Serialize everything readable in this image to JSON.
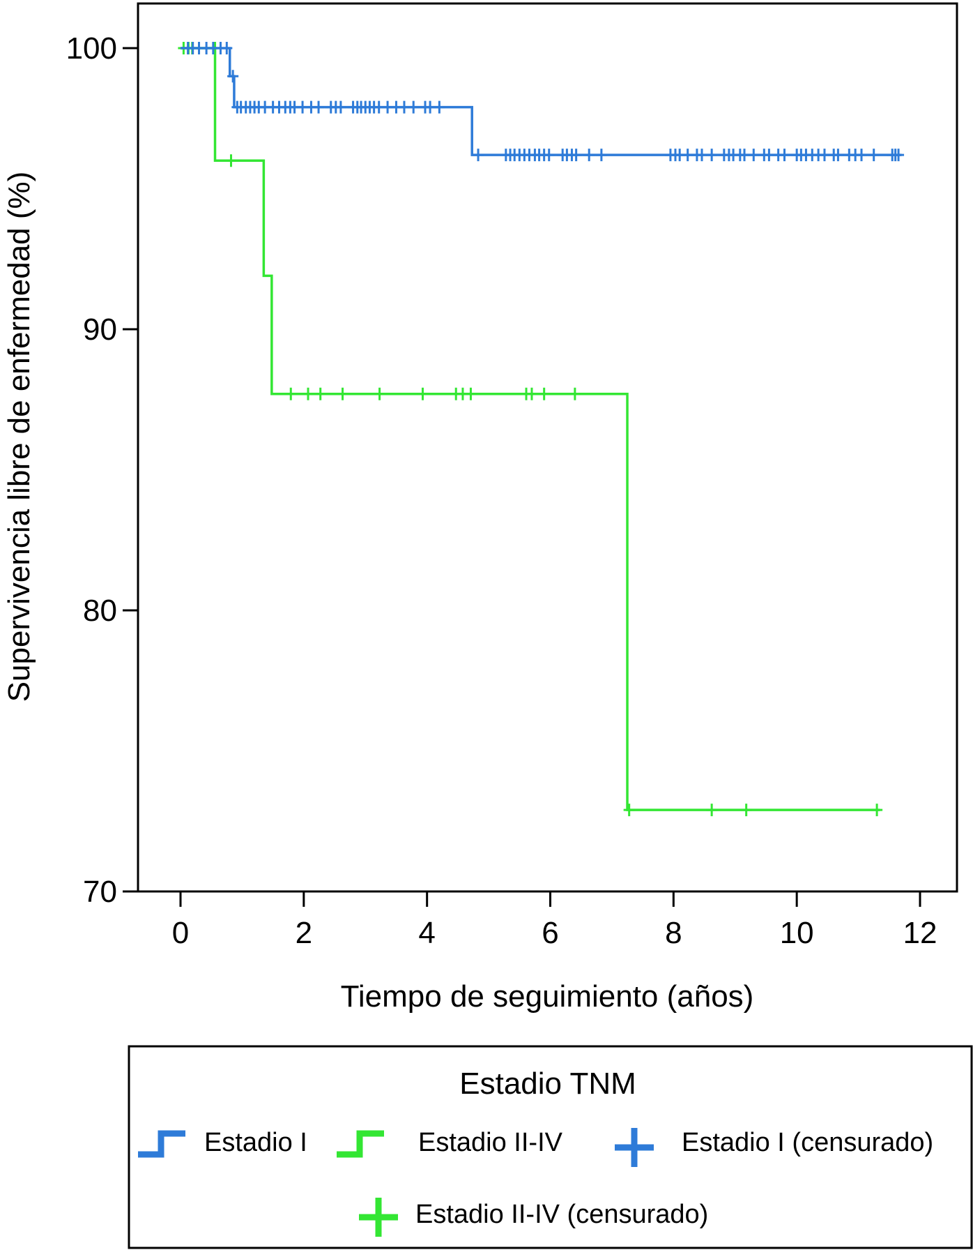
{
  "chart_data": {
    "type": "line",
    "subtype": "kaplan-meier",
    "title": "",
    "xlabel": "Tiempo de seguimiento (años)",
    "ylabel": "Supervivencia libre de enfermedad (%)",
    "xlim": [
      -0.7,
      12.6
    ],
    "ylim": [
      70,
      101.6
    ],
    "x_ticks": [
      0,
      2,
      4,
      6,
      8,
      10,
      12
    ],
    "x_tick_labels": [
      "0",
      "2",
      "4",
      "6",
      "8",
      "10",
      "12"
    ],
    "y_ticks": [
      70,
      80,
      90,
      100
    ],
    "y_tick_labels": [
      "70",
      "80",
      "90",
      "100"
    ],
    "grid": false,
    "series": [
      {
        "name": "Estadio I",
        "color": "#2E7BD8",
        "steps": [
          [
            0.0,
            100
          ],
          [
            0.8,
            99.0
          ],
          [
            0.87,
            97.9
          ],
          [
            4.73,
            96.2
          ],
          [
            11.7,
            96.2
          ]
        ],
        "censored": [
          [
            0.12,
            100
          ],
          [
            0.2,
            100
          ],
          [
            0.3,
            100
          ],
          [
            0.42,
            100
          ],
          [
            0.53,
            100
          ],
          [
            0.65,
            100
          ],
          [
            0.75,
            100
          ],
          [
            0.85,
            99.0
          ],
          [
            0.92,
            97.9
          ],
          [
            0.98,
            97.9
          ],
          [
            1.06,
            97.9
          ],
          [
            1.13,
            97.9
          ],
          [
            1.2,
            97.9
          ],
          [
            1.27,
            97.9
          ],
          [
            1.37,
            97.9
          ],
          [
            1.5,
            97.9
          ],
          [
            1.6,
            97.9
          ],
          [
            1.7,
            97.9
          ],
          [
            1.78,
            97.9
          ],
          [
            1.85,
            97.9
          ],
          [
            1.98,
            97.9
          ],
          [
            2.12,
            97.9
          ],
          [
            2.24,
            97.9
          ],
          [
            2.44,
            97.9
          ],
          [
            2.52,
            97.9
          ],
          [
            2.6,
            97.9
          ],
          [
            2.8,
            97.9
          ],
          [
            2.87,
            97.9
          ],
          [
            2.93,
            97.9
          ],
          [
            3.0,
            97.9
          ],
          [
            3.07,
            97.9
          ],
          [
            3.14,
            97.9
          ],
          [
            3.22,
            97.9
          ],
          [
            3.36,
            97.9
          ],
          [
            3.5,
            97.9
          ],
          [
            3.63,
            97.9
          ],
          [
            3.78,
            97.9
          ],
          [
            3.97,
            97.9
          ],
          [
            4.05,
            97.9
          ],
          [
            4.2,
            97.9
          ],
          [
            4.83,
            96.2
          ],
          [
            5.28,
            96.2
          ],
          [
            5.35,
            96.2
          ],
          [
            5.42,
            96.2
          ],
          [
            5.5,
            96.2
          ],
          [
            5.58,
            96.2
          ],
          [
            5.66,
            96.2
          ],
          [
            5.75,
            96.2
          ],
          [
            5.82,
            96.2
          ],
          [
            5.9,
            96.2
          ],
          [
            5.98,
            96.2
          ],
          [
            6.2,
            96.2
          ],
          [
            6.27,
            96.2
          ],
          [
            6.35,
            96.2
          ],
          [
            6.42,
            96.2
          ],
          [
            6.63,
            96.2
          ],
          [
            6.83,
            96.2
          ],
          [
            7.95,
            96.2
          ],
          [
            8.03,
            96.2
          ],
          [
            8.1,
            96.2
          ],
          [
            8.23,
            96.2
          ],
          [
            8.38,
            96.2
          ],
          [
            8.46,
            96.2
          ],
          [
            8.62,
            96.2
          ],
          [
            8.82,
            96.2
          ],
          [
            8.9,
            96.2
          ],
          [
            8.97,
            96.2
          ],
          [
            9.08,
            96.2
          ],
          [
            9.15,
            96.2
          ],
          [
            9.3,
            96.2
          ],
          [
            9.47,
            96.2
          ],
          [
            9.55,
            96.2
          ],
          [
            9.7,
            96.2
          ],
          [
            9.8,
            96.2
          ],
          [
            10.0,
            96.2
          ],
          [
            10.07,
            96.2
          ],
          [
            10.15,
            96.2
          ],
          [
            10.25,
            96.2
          ],
          [
            10.35,
            96.2
          ],
          [
            10.45,
            96.2
          ],
          [
            10.6,
            96.2
          ],
          [
            10.67,
            96.2
          ],
          [
            10.85,
            96.2
          ],
          [
            10.95,
            96.2
          ],
          [
            11.05,
            96.2
          ],
          [
            11.25,
            96.2
          ],
          [
            11.55,
            96.2
          ],
          [
            11.6,
            96.2
          ],
          [
            11.65,
            96.2
          ]
        ]
      },
      {
        "name": "Estadio II-IV",
        "color": "#33E633",
        "steps": [
          [
            0.0,
            100
          ],
          [
            0.56,
            96.0
          ],
          [
            1.35,
            91.9
          ],
          [
            1.48,
            87.7
          ],
          [
            7.25,
            72.9
          ],
          [
            11.35,
            72.9
          ]
        ],
        "censored": [
          [
            0.05,
            100
          ],
          [
            0.13,
            100
          ],
          [
            0.19,
            100
          ],
          [
            0.56,
            100
          ],
          [
            0.82,
            96.0
          ],
          [
            1.79,
            87.7
          ],
          [
            2.07,
            87.7
          ],
          [
            2.27,
            87.7
          ],
          [
            2.63,
            87.7
          ],
          [
            3.23,
            87.7
          ],
          [
            3.93,
            87.7
          ],
          [
            4.47,
            87.7
          ],
          [
            4.58,
            87.7
          ],
          [
            4.71,
            87.7
          ],
          [
            5.61,
            87.7
          ],
          [
            5.7,
            87.7
          ],
          [
            5.9,
            87.7
          ],
          [
            6.4,
            87.7
          ],
          [
            7.28,
            72.9
          ],
          [
            8.62,
            72.9
          ],
          [
            9.18,
            72.9
          ],
          [
            11.3,
            72.9
          ]
        ]
      }
    ],
    "legend": {
      "title": "Estadio TNM",
      "placement": "bottom",
      "entries": [
        {
          "label": "Estadio I",
          "color": "#2E7BD8",
          "marker": "step"
        },
        {
          "label": "Estadio II-IV",
          "color": "#33E633",
          "marker": "step"
        },
        {
          "label": "Estadio I (censurado)",
          "color": "#2E7BD8",
          "marker": "plus"
        },
        {
          "label": "Estadio II-IV (censurado)",
          "color": "#33E633",
          "marker": "plus"
        }
      ]
    }
  }
}
